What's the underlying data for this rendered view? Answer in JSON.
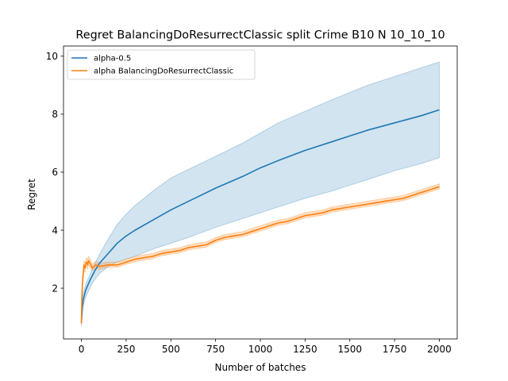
{
  "chart_data": {
    "type": "line",
    "title": "Regret BalancingDoResurrectClassic split Crime B10 N 10_10_10",
    "xlabel": "Number of batches",
    "ylabel": "Regret",
    "xlim": [
      -100,
      2100
    ],
    "ylim": [
      0.25,
      10.35
    ],
    "xticks": [
      0,
      250,
      500,
      750,
      1000,
      1250,
      1500,
      1750,
      2000
    ],
    "yticks": [
      2,
      4,
      6,
      8,
      10
    ],
    "grid": false,
    "legend_position": "upper-left",
    "series": [
      {
        "name": "alpha-0.5",
        "color": "#1f77b4",
        "band_color": "#1f77b4",
        "band_opacity": 0.2,
        "x": [
          0,
          5,
          10,
          25,
          50,
          75,
          100,
          150,
          200,
          250,
          300,
          400,
          500,
          600,
          750,
          900,
          1000,
          1100,
          1250,
          1400,
          1500,
          1600,
          1750,
          1900,
          2000
        ],
        "y": [
          0.8,
          1.3,
          1.6,
          1.95,
          2.3,
          2.6,
          2.85,
          3.2,
          3.55,
          3.8,
          4.0,
          4.35,
          4.7,
          5.0,
          5.45,
          5.85,
          6.15,
          6.4,
          6.75,
          7.05,
          7.25,
          7.45,
          7.7,
          7.95,
          8.15
        ],
        "lower": [
          0.7,
          1.1,
          1.4,
          1.7,
          2.05,
          2.3,
          2.5,
          2.75,
          2.9,
          3.0,
          3.1,
          3.35,
          3.55,
          3.75,
          4.1,
          4.4,
          4.6,
          4.8,
          5.1,
          5.35,
          5.55,
          5.75,
          6.05,
          6.3,
          6.5
        ],
        "upper": [
          0.95,
          1.5,
          1.8,
          2.15,
          2.5,
          2.85,
          3.15,
          3.7,
          4.2,
          4.55,
          4.85,
          5.35,
          5.8,
          6.1,
          6.55,
          7.0,
          7.35,
          7.7,
          8.1,
          8.5,
          8.75,
          9.0,
          9.3,
          9.6,
          9.8
        ]
      },
      {
        "name": "alpha BalancingDoResurrectClassic",
        "color": "#ff7f0e",
        "band_color": "#ff7f0e",
        "band_opacity": 0.25,
        "x": [
          0,
          3,
          6,
          10,
          15,
          20,
          25,
          30,
          35,
          40,
          50,
          60,
          70,
          80,
          100,
          150,
          200,
          250,
          300,
          350,
          400,
          450,
          500,
          550,
          600,
          650,
          700,
          750,
          800,
          850,
          900,
          950,
          1000,
          1050,
          1100,
          1150,
          1200,
          1250,
          1300,
          1350,
          1400,
          1450,
          1500,
          1550,
          1600,
          1650,
          1700,
          1750,
          1800,
          1850,
          1900,
          1950,
          2000
        ],
        "y": [
          0.8,
          1.7,
          2.2,
          2.5,
          2.8,
          2.7,
          2.85,
          2.9,
          2.8,
          2.95,
          2.85,
          2.7,
          2.75,
          2.8,
          2.75,
          2.8,
          2.8,
          2.9,
          3.0,
          3.05,
          3.1,
          3.2,
          3.25,
          3.3,
          3.4,
          3.45,
          3.5,
          3.65,
          3.75,
          3.8,
          3.85,
          3.95,
          4.05,
          4.15,
          4.25,
          4.3,
          4.4,
          4.5,
          4.55,
          4.6,
          4.7,
          4.75,
          4.8,
          4.85,
          4.9,
          4.95,
          5.0,
          5.05,
          5.1,
          5.2,
          5.3,
          5.4,
          5.5
        ],
        "lower": [
          0.7,
          1.55,
          2.05,
          2.35,
          2.65,
          2.55,
          2.7,
          2.75,
          2.65,
          2.8,
          2.7,
          2.6,
          2.65,
          2.7,
          2.65,
          2.72,
          2.72,
          2.82,
          2.92,
          2.97,
          3.02,
          3.12,
          3.17,
          3.22,
          3.32,
          3.37,
          3.42,
          3.57,
          3.67,
          3.72,
          3.77,
          3.87,
          3.97,
          4.07,
          4.17,
          4.22,
          4.32,
          4.42,
          4.47,
          4.52,
          4.62,
          4.67,
          4.72,
          4.77,
          4.82,
          4.87,
          4.92,
          4.97,
          5.02,
          5.12,
          5.22,
          5.32,
          5.42
        ],
        "upper": [
          0.9,
          1.85,
          2.35,
          2.65,
          2.95,
          2.85,
          3.0,
          3.05,
          2.95,
          3.1,
          3.0,
          2.82,
          2.87,
          2.92,
          2.87,
          2.9,
          2.9,
          3.0,
          3.1,
          3.15,
          3.2,
          3.3,
          3.35,
          3.4,
          3.5,
          3.55,
          3.6,
          3.75,
          3.85,
          3.9,
          3.95,
          4.05,
          4.15,
          4.25,
          4.35,
          4.4,
          4.5,
          4.6,
          4.65,
          4.7,
          4.8,
          4.85,
          4.9,
          4.95,
          5.0,
          5.05,
          5.1,
          5.15,
          5.2,
          5.3,
          5.4,
          5.5,
          5.6
        ]
      }
    ]
  }
}
